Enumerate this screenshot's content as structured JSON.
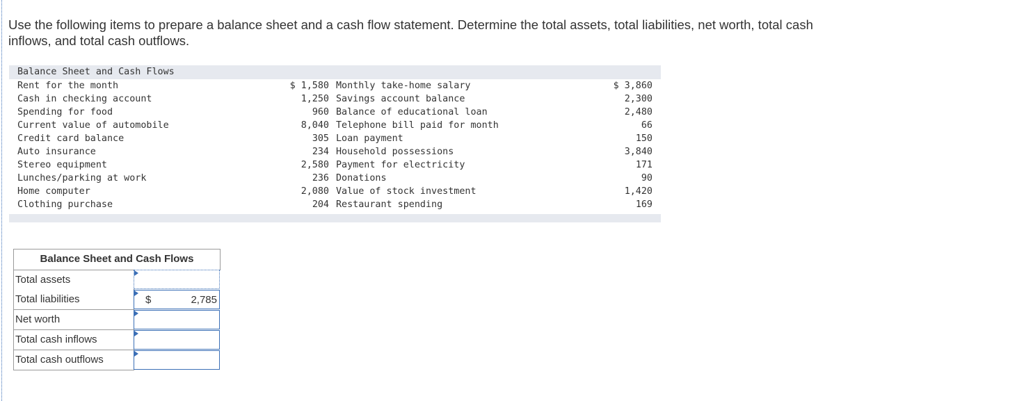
{
  "instructions": "Use the following items to prepare a balance sheet and a cash flow statement. Determine the total assets, total liabilities, net worth, total cash inflows, and total cash outflows.",
  "reference_table": {
    "title": "Balance Sheet and Cash Flows",
    "rows": [
      {
        "label1": "Rent for the month",
        "value1": "$ 1,580",
        "label2": "Monthly take-home salary",
        "value2": "$ 3,860"
      },
      {
        "label1": "Cash in checking account",
        "value1": "1,250",
        "label2": "Savings account balance",
        "value2": "2,300"
      },
      {
        "label1": "Spending for food",
        "value1": "960",
        "label2": "Balance of educational loan",
        "value2": "2,480"
      },
      {
        "label1": "Current value of automobile",
        "value1": "8,040",
        "label2": "Telephone bill paid for month",
        "value2": "66"
      },
      {
        "label1": "Credit card balance",
        "value1": "305",
        "label2": "Loan payment",
        "value2": "150"
      },
      {
        "label1": "Auto insurance",
        "value1": "234",
        "label2": "Household possessions",
        "value2": "3,840"
      },
      {
        "label1": "Stereo equipment",
        "value1": "2,580",
        "label2": "Payment for electricity",
        "value2": "171"
      },
      {
        "label1": "Lunches/parking at work",
        "value1": "236",
        "label2": "Donations",
        "value2": "90"
      },
      {
        "label1": "Home computer",
        "value1": "2,080",
        "label2": "Value of stock investment",
        "value2": "1,420"
      },
      {
        "label1": "Clothing purchase",
        "value1": "204",
        "label2": "Restaurant spending",
        "value2": "169"
      }
    ]
  },
  "answer_table": {
    "title": "Balance Sheet and Cash Flows",
    "rows": [
      {
        "label": "Total assets",
        "currency": "",
        "value": ""
      },
      {
        "label": "Total liabilities",
        "currency": "$",
        "value": "2,785"
      },
      {
        "label": "Net worth",
        "currency": "",
        "value": ""
      },
      {
        "label": "Total cash inflows",
        "currency": "",
        "value": ""
      },
      {
        "label": "Total cash outflows",
        "currency": "",
        "value": ""
      }
    ]
  },
  "colors": {
    "accent_border": "#3b6fb6",
    "header_bg": "#e6e9ef",
    "text": "#333333"
  }
}
